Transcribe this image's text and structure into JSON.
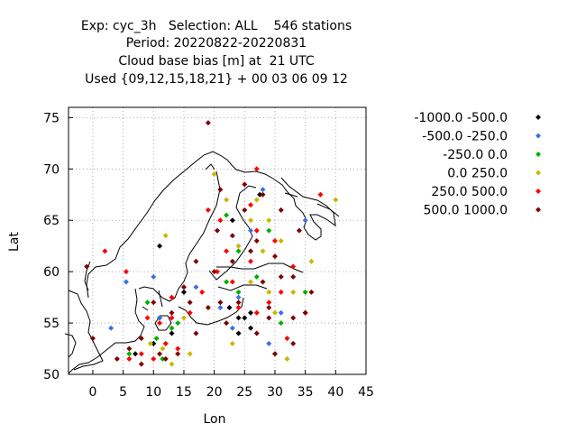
{
  "chart_data": {
    "type": "scatter",
    "title_lines": [
      "Exp: cyc_3h   Selection: ALL    546 stations",
      "Period: 20220822-20220831",
      "Cloud base bias [m] at  21 UTC",
      "Used {09,12,15,18,21} + 00 03 06 09 12"
    ],
    "xlabel": "Lon",
    "ylabel": "Lat",
    "xlim": [
      -4,
      45
    ],
    "ylim": [
      50,
      76
    ],
    "xticks": [
      0,
      5,
      10,
      15,
      20,
      25,
      30,
      35,
      40,
      45
    ],
    "yticks": [
      50,
      55,
      60,
      65,
      70,
      75
    ],
    "grid": true,
    "legend_position": "right",
    "series": [
      {
        "name": "-1000.0 -500.0",
        "color": "#000000",
        "points": [
          [
            27.5,
            67.5
          ],
          [
            11,
            62.5
          ],
          [
            11,
            55.5
          ],
          [
            13,
            54
          ],
          [
            22.5,
            56.5
          ],
          [
            24,
            55.5
          ],
          [
            25,
            55.5
          ],
          [
            26,
            56
          ],
          [
            26,
            54.5
          ],
          [
            24,
            54
          ],
          [
            7,
            52
          ],
          [
            10,
            53
          ],
          [
            23,
            65
          ],
          [
            15,
            58
          ]
        ]
      },
      {
        "name": "-500.0 -250.0",
        "color": "#3f6fe0",
        "points": [
          [
            28,
            68
          ],
          [
            3,
            54.5
          ],
          [
            5.5,
            59
          ],
          [
            11,
            55.5
          ],
          [
            17,
            58.5
          ],
          [
            21,
            56.5
          ],
          [
            23,
            54.5
          ],
          [
            24,
            57.5
          ],
          [
            26,
            64
          ],
          [
            29,
            53
          ],
          [
            35,
            65
          ],
          [
            31,
            56
          ],
          [
            12,
            53
          ],
          [
            10,
            59.5
          ]
        ]
      },
      {
        "name": "-250.0 0.0",
        "color": "#00b000",
        "points": [
          [
            22,
            65.5
          ],
          [
            29,
            64
          ],
          [
            27,
            59.5
          ],
          [
            24,
            58
          ],
          [
            9,
            57
          ],
          [
            10.5,
            53.5
          ],
          [
            11.5,
            51.5
          ],
          [
            13,
            54.5
          ],
          [
            14,
            55
          ],
          [
            6,
            52
          ],
          [
            31,
            55
          ],
          [
            30,
            52
          ],
          [
            22,
            59
          ],
          [
            35,
            58
          ],
          [
            24,
            62
          ]
        ]
      },
      {
        "name": "0.0 250.0",
        "color": "#c8b800",
        "points": [
          [
            20,
            69.5
          ],
          [
            22,
            67
          ],
          [
            27,
            67
          ],
          [
            40,
            67
          ],
          [
            26,
            65
          ],
          [
            29,
            65
          ],
          [
            24,
            62.5
          ],
          [
            31,
            63
          ],
          [
            36,
            61
          ],
          [
            29,
            58
          ],
          [
            30,
            56
          ],
          [
            12,
            63.5
          ],
          [
            9.5,
            53
          ],
          [
            11.5,
            52.5
          ],
          [
            32,
            51.5
          ],
          [
            15,
            55.5
          ],
          [
            16,
            52
          ],
          [
            13,
            51
          ],
          [
            23,
            53
          ],
          [
            26,
            59
          ],
          [
            33,
            58
          ],
          [
            28,
            62
          ]
        ]
      },
      {
        "name": "250.0 500.0",
        "color": "#ff0000",
        "points": [
          [
            27,
            70
          ],
          [
            26,
            66.5
          ],
          [
            37.5,
            67.5
          ],
          [
            19,
            66
          ],
          [
            21,
            65
          ],
          [
            27,
            64
          ],
          [
            22,
            62
          ],
          [
            30,
            63
          ],
          [
            26,
            61
          ],
          [
            33,
            60.5
          ],
          [
            29,
            57
          ],
          [
            27,
            56
          ],
          [
            32,
            53.5
          ],
          [
            24,
            56.5
          ],
          [
            13,
            57.5
          ],
          [
            16,
            56
          ],
          [
            9,
            55.5
          ],
          [
            12,
            53
          ],
          [
            8,
            52
          ],
          [
            6,
            51.5
          ],
          [
            10,
            51.5
          ],
          [
            2,
            62
          ],
          [
            5.5,
            60
          ],
          [
            20.5,
            60
          ],
          [
            14,
            52.5
          ],
          [
            18,
            58
          ],
          [
            31,
            58
          ],
          [
            23,
            59
          ],
          [
            35,
            56
          ],
          [
            11,
            55
          ],
          [
            13,
            55.5
          ]
        ]
      },
      {
        "name": "500.0 1000.0",
        "color": "#800000",
        "points": [
          [
            19,
            74.5
          ],
          [
            -1,
            60.5
          ],
          [
            25,
            68.5
          ],
          [
            21,
            68
          ],
          [
            28,
            67.5
          ],
          [
            23,
            63.5
          ],
          [
            27,
            63
          ],
          [
            26,
            62
          ],
          [
            30,
            61.5
          ],
          [
            33,
            59.5
          ],
          [
            31,
            59.5
          ],
          [
            36,
            58
          ],
          [
            35,
            56
          ],
          [
            33,
            55.5
          ],
          [
            29,
            56.5
          ],
          [
            29,
            55.5
          ],
          [
            27,
            54
          ],
          [
            22,
            55
          ],
          [
            21,
            57
          ],
          [
            19,
            56.5
          ],
          [
            16,
            57
          ],
          [
            15,
            58.5
          ],
          [
            13,
            56
          ],
          [
            10,
            57
          ],
          [
            8,
            53.5
          ],
          [
            6,
            52.5
          ],
          [
            4,
            51.5
          ],
          [
            0,
            53.5
          ],
          [
            8,
            51
          ],
          [
            11,
            52
          ],
          [
            14,
            52
          ],
          [
            12,
            51.5
          ],
          [
            17,
            54
          ],
          [
            20,
            60
          ],
          [
            17,
            61
          ],
          [
            20.5,
            64
          ],
          [
            25,
            66
          ],
          [
            31,
            66
          ],
          [
            34,
            64
          ],
          [
            30,
            52
          ],
          [
            33,
            53
          ],
          [
            23,
            61
          ],
          [
            24,
            57
          ],
          [
            28,
            59
          ]
        ]
      }
    ]
  },
  "legend": {
    "entries": [
      "-1000.0 -500.0",
      "-500.0 -250.0",
      "-250.0 0.0",
      "0.0 250.0",
      "250.0 500.0",
      "500.0 1000.0"
    ]
  }
}
